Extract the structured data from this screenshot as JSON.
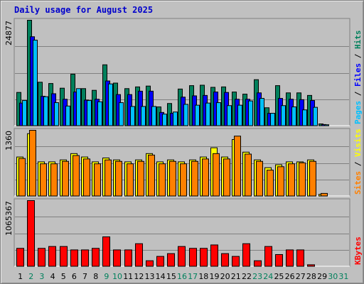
{
  "title": "Daily usage for August 2025",
  "colors": {
    "background": "#c0c0c0",
    "title": "#0000cc",
    "hits": "#00805c",
    "files": "#0000ff",
    "pages": "#00c0ff",
    "visits": "#ffff00",
    "sites": "#ff8000",
    "kbytes": "#ff0000",
    "weekday_label": "#000000",
    "weekend_label": "#00805c"
  },
  "chart_data": [
    {
      "type": "bar",
      "name": "hits-files-pages",
      "ylabel_parts": [
        {
          "text": "Pages",
          "color": "#00c0ff"
        },
        {
          "text": " / ",
          "color": "#000000"
        },
        {
          "text": "Files",
          "color": "#0000ff"
        },
        {
          "text": " / ",
          "color": "#000000"
        },
        {
          "text": "Hits",
          "color": "#00805c"
        }
      ],
      "max_label": "24877",
      "ylim": [
        0,
        24877
      ],
      "series": [
        {
          "name": "Hits",
          "values": [
            7900,
            24877,
            10300,
            10000,
            8900,
            12200,
            8800,
            8400,
            14400,
            10100,
            8800,
            9200,
            9400,
            4500,
            5300,
            8700,
            9500,
            9600,
            9100,
            9200,
            8000,
            7500,
            10900,
            4300,
            9500,
            7800,
            7800,
            7200,
            500,
            0,
            0
          ]
        },
        {
          "name": "Files",
          "values": [
            5400,
            21000,
            7000,
            7600,
            6300,
            8000,
            6100,
            6300,
            10600,
            7400,
            7400,
            8200,
            8200,
            3200,
            3000,
            6800,
            7100,
            7200,
            8000,
            7900,
            6300,
            6300,
            7800,
            3000,
            6500,
            6300,
            6200,
            6000,
            350,
            0,
            0
          ]
        },
        {
          "name": "Pages",
          "values": [
            6000,
            20200,
            6900,
            5500,
            4700,
            8800,
            6000,
            5700,
            9900,
            5500,
            4600,
            4600,
            4600,
            2800,
            3300,
            5100,
            4900,
            5400,
            5500,
            4800,
            4900,
            5900,
            6500,
            3000,
            4800,
            4500,
            3800,
            4400,
            300,
            0,
            0
          ]
        }
      ]
    },
    {
      "type": "bar",
      "name": "visits-sites",
      "ylabel_parts": [
        {
          "text": "Sites",
          "color": "#ff8000"
        },
        {
          "text": " / ",
          "color": "#000000"
        },
        {
          "text": "Visits",
          "color": "#ffff00"
        }
      ],
      "max_label": "1360",
      "ylim": [
        0,
        1360
      ],
      "series": [
        {
          "name": "Visits",
          "values": [
            810,
            1290,
            710,
            710,
            750,
            880,
            810,
            710,
            790,
            750,
            710,
            750,
            880,
            710,
            750,
            710,
            750,
            810,
            1000,
            810,
            1170,
            910,
            750,
            590,
            650,
            710,
            710,
            750,
            40,
            0,
            0
          ]
        },
        {
          "name": "Sites",
          "values": [
            780,
            1360,
            670,
            670,
            720,
            840,
            770,
            670,
            750,
            720,
            670,
            720,
            850,
            670,
            720,
            670,
            720,
            770,
            880,
            770,
            1240,
            870,
            720,
            540,
            610,
            670,
            690,
            720,
            60,
            0,
            0
          ]
        }
      ]
    },
    {
      "type": "bar",
      "name": "kbytes",
      "ylabel_parts": [
        {
          "text": "KBytes",
          "color": "#ff0000"
        }
      ],
      "max_label": "1065367",
      "ylim": [
        0,
        1065367
      ],
      "series": [
        {
          "name": "KBytes",
          "values": [
            295000,
            1065367,
            295000,
            325000,
            325000,
            270000,
            270000,
            295000,
            480000,
            270000,
            270000,
            370000,
            95000,
            165000,
            210000,
            325000,
            295000,
            295000,
            350000,
            210000,
            165000,
            370000,
            95000,
            325000,
            195000,
            270000,
            270000,
            30000,
            0,
            0,
            0
          ]
        }
      ]
    }
  ],
  "days": [
    {
      "label": "1",
      "weekend": false
    },
    {
      "label": "2",
      "weekend": true
    },
    {
      "label": "3",
      "weekend": true
    },
    {
      "label": "4",
      "weekend": false
    },
    {
      "label": "5",
      "weekend": false
    },
    {
      "label": "6",
      "weekend": false
    },
    {
      "label": "7",
      "weekend": false
    },
    {
      "label": "8",
      "weekend": false
    },
    {
      "label": "9",
      "weekend": true
    },
    {
      "label": "10",
      "weekend": true
    },
    {
      "label": "11",
      "weekend": false
    },
    {
      "label": "12",
      "weekend": false
    },
    {
      "label": "13",
      "weekend": false
    },
    {
      "label": "14",
      "weekend": false
    },
    {
      "label": "15",
      "weekend": false
    },
    {
      "label": "16",
      "weekend": true
    },
    {
      "label": "17",
      "weekend": true
    },
    {
      "label": "18",
      "weekend": false
    },
    {
      "label": "19",
      "weekend": false
    },
    {
      "label": "20",
      "weekend": false
    },
    {
      "label": "21",
      "weekend": false
    },
    {
      "label": "22",
      "weekend": false
    },
    {
      "label": "23",
      "weekend": true
    },
    {
      "label": "24",
      "weekend": true
    },
    {
      "label": "25",
      "weekend": false
    },
    {
      "label": "26",
      "weekend": false
    },
    {
      "label": "27",
      "weekend": false
    },
    {
      "label": "28",
      "weekend": false
    },
    {
      "label": "29",
      "weekend": false
    },
    {
      "label": "30",
      "weekend": true
    },
    {
      "label": "31",
      "weekend": true
    }
  ]
}
